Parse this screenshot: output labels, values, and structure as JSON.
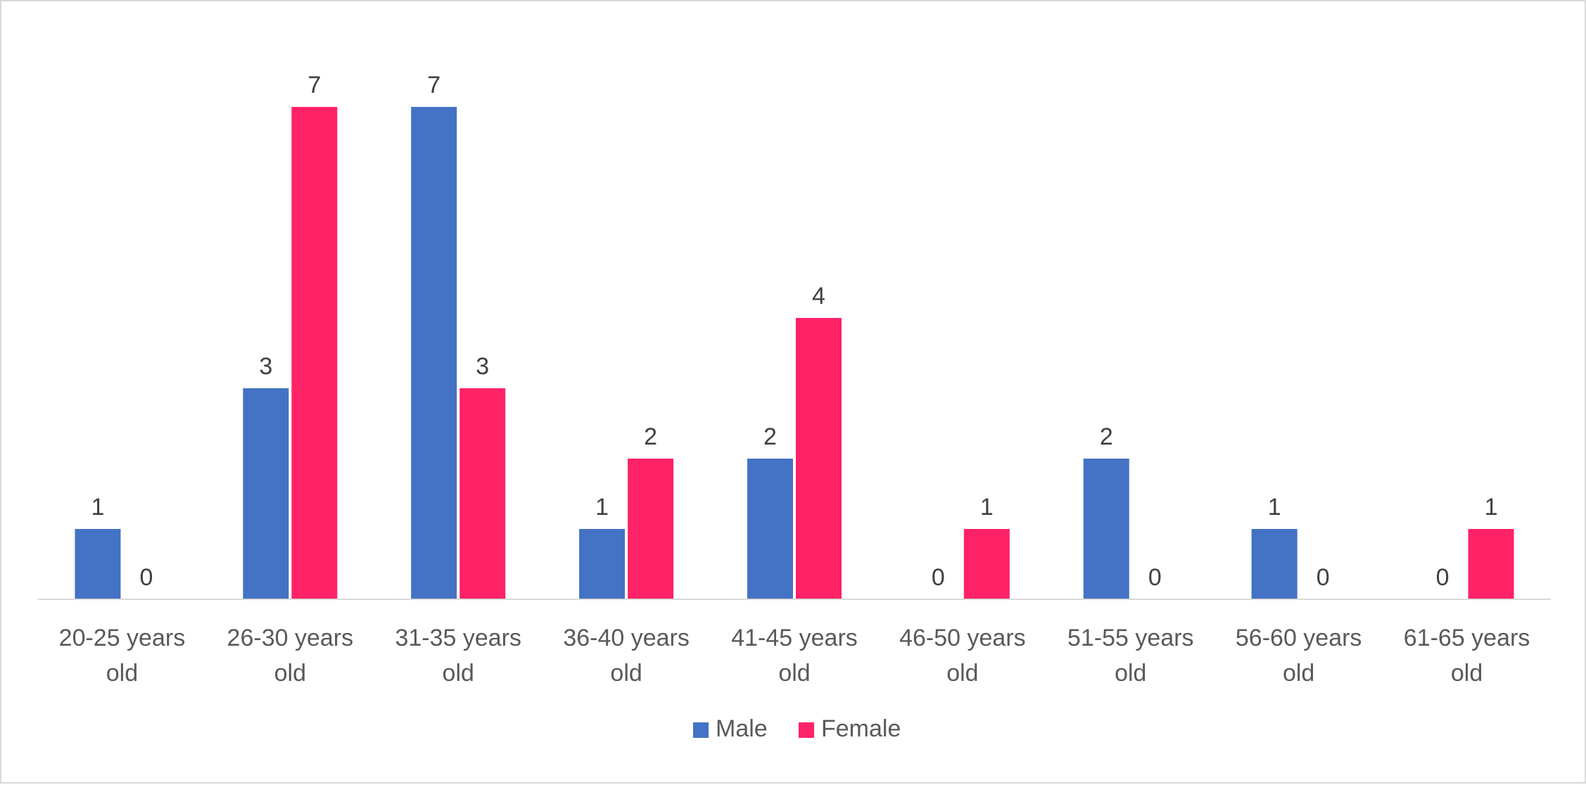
{
  "chart_data": {
    "type": "bar",
    "categories": [
      [
        "20-25 years",
        "old"
      ],
      [
        "26-30 years",
        "old"
      ],
      [
        "31-35 years",
        "old"
      ],
      [
        "36-40 years",
        "old"
      ],
      [
        "41-45 years",
        "old"
      ],
      [
        "46-50 years",
        "old"
      ],
      [
        "51-55 years",
        "old"
      ],
      [
        "56-60 years",
        "old"
      ],
      [
        "61-65 years",
        "old"
      ]
    ],
    "series": [
      {
        "name": "Male",
        "color": "#4472c4",
        "values": [
          1,
          3,
          7,
          1,
          2,
          0,
          2,
          1,
          0
        ]
      },
      {
        "name": "Female",
        "color": "#ff2267",
        "values": [
          0,
          7,
          3,
          2,
          4,
          1,
          0,
          0,
          1
        ]
      }
    ],
    "ylim": [
      0,
      7
    ],
    "grid": false,
    "data_labels": true,
    "legend": "bottom-center",
    "axis_color": "#d9d9d9"
  }
}
